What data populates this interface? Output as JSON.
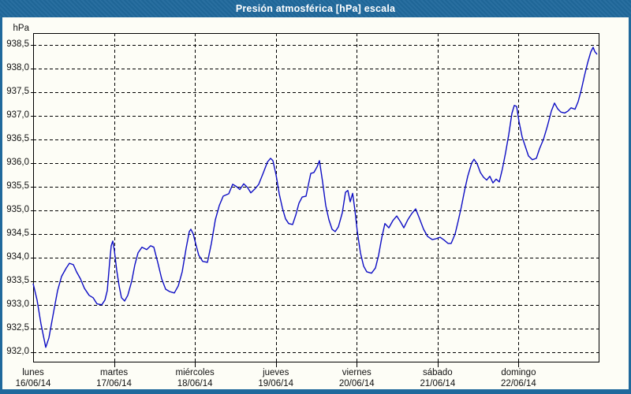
{
  "window": {
    "title": "Presión atmosférica [hPa] escala"
  },
  "colors": {
    "frame_blue": "#20699c",
    "title_text": "#ffffff",
    "background": "#fdfdf6",
    "grid": "#000000",
    "line_blue": "#0d0dc4",
    "label_text": "#111111"
  },
  "chart_data": {
    "type": "line",
    "title": "Presión atmosférica [hPa] escala",
    "legend": "none",
    "grid": "dashed",
    "y_axis": {
      "unit": "hPa",
      "ylim": [
        931.78,
        938.75
      ],
      "ticks": [
        932.0,
        932.5,
        933.0,
        933.5,
        934.0,
        934.5,
        935.0,
        935.5,
        936.0,
        936.5,
        937.0,
        937.5,
        938.0,
        938.5
      ],
      "tick_labels": [
        "932,0",
        "932,5",
        "933,0",
        "933,5",
        "934,0",
        "934,5",
        "935,0",
        "935,5",
        "936,0",
        "936,5",
        "937,0",
        "937,5",
        "938,0",
        "938,5"
      ]
    },
    "x_axis": {
      "range_days": [
        0,
        7
      ],
      "days": [
        {
          "name": "lunes",
          "date": "16/06/14"
        },
        {
          "name": "martes",
          "date": "17/06/14"
        },
        {
          "name": "miércoles",
          "date": "18/06/14"
        },
        {
          "name": "jueves",
          "date": "19/06/14"
        },
        {
          "name": "viernes",
          "date": "20/06/14"
        },
        {
          "name": "sábado",
          "date": "21/06/14"
        },
        {
          "name": "domingo",
          "date": "22/06/14"
        }
      ]
    },
    "series": [
      {
        "name": "Presión atmosférica",
        "color": "#0d0dc4",
        "points_day_hpa": [
          [
            0.0,
            933.45
          ],
          [
            0.049,
            933.1
          ],
          [
            0.097,
            932.6
          ],
          [
            0.156,
            932.1
          ],
          [
            0.195,
            932.3
          ],
          [
            0.253,
            932.85
          ],
          [
            0.302,
            933.3
          ],
          [
            0.351,
            933.6
          ],
          [
            0.409,
            933.78
          ],
          [
            0.448,
            933.88
          ],
          [
            0.497,
            933.85
          ],
          [
            0.536,
            933.7
          ],
          [
            0.585,
            933.55
          ],
          [
            0.634,
            933.35
          ],
          [
            0.692,
            933.2
          ],
          [
            0.741,
            933.15
          ],
          [
            0.79,
            933.02
          ],
          [
            0.848,
            933.0
          ],
          [
            0.887,
            933.1
          ],
          [
            0.916,
            933.3
          ],
          [
            0.946,
            933.9
          ],
          [
            0.965,
            934.25
          ],
          [
            0.985,
            934.35
          ],
          [
            1.004,
            934.15
          ],
          [
            1.033,
            933.73
          ],
          [
            1.063,
            933.4
          ],
          [
            1.092,
            933.15
          ],
          [
            1.131,
            933.08
          ],
          [
            1.17,
            933.2
          ],
          [
            1.219,
            933.5
          ],
          [
            1.258,
            933.85
          ],
          [
            1.297,
            934.1
          ],
          [
            1.345,
            934.22
          ],
          [
            1.404,
            934.17
          ],
          [
            1.453,
            934.25
          ],
          [
            1.492,
            934.22
          ],
          [
            1.54,
            933.9
          ],
          [
            1.589,
            933.55
          ],
          [
            1.638,
            933.33
          ],
          [
            1.687,
            933.28
          ],
          [
            1.745,
            933.25
          ],
          [
            1.794,
            933.4
          ],
          [
            1.843,
            933.7
          ],
          [
            1.891,
            934.2
          ],
          [
            1.93,
            934.55
          ],
          [
            1.95,
            934.6
          ],
          [
            1.979,
            934.5
          ],
          [
            2.008,
            934.3
          ],
          [
            2.047,
            934.05
          ],
          [
            2.096,
            933.92
          ],
          [
            2.155,
            933.9
          ],
          [
            2.203,
            934.3
          ],
          [
            2.252,
            934.8
          ],
          [
            2.301,
            935.1
          ],
          [
            2.35,
            935.3
          ],
          [
            2.418,
            935.35
          ],
          [
            2.467,
            935.55
          ],
          [
            2.515,
            935.5
          ],
          [
            2.554,
            935.44
          ],
          [
            2.603,
            935.56
          ],
          [
            2.652,
            935.48
          ],
          [
            2.691,
            935.37
          ],
          [
            2.74,
            935.45
          ],
          [
            2.788,
            935.55
          ],
          [
            2.847,
            935.8
          ],
          [
            2.896,
            936.02
          ],
          [
            2.935,
            936.1
          ],
          [
            2.964,
            936.05
          ],
          [
            3.003,
            935.75
          ],
          [
            3.042,
            935.35
          ],
          [
            3.081,
            935.05
          ],
          [
            3.12,
            934.82
          ],
          [
            3.159,
            934.72
          ],
          [
            3.208,
            934.7
          ],
          [
            3.247,
            934.9
          ],
          [
            3.286,
            935.15
          ],
          [
            3.325,
            935.28
          ],
          [
            3.373,
            935.3
          ],
          [
            3.403,
            935.55
          ],
          [
            3.432,
            935.78
          ],
          [
            3.471,
            935.8
          ],
          [
            3.51,
            935.92
          ],
          [
            3.539,
            936.05
          ],
          [
            3.578,
            935.6
          ],
          [
            3.617,
            935.1
          ],
          [
            3.656,
            934.8
          ],
          [
            3.695,
            934.6
          ],
          [
            3.734,
            934.55
          ],
          [
            3.773,
            934.65
          ],
          [
            3.822,
            934.95
          ],
          [
            3.861,
            935.38
          ],
          [
            3.89,
            935.42
          ],
          [
            3.919,
            935.18
          ],
          [
            3.949,
            935.36
          ],
          [
            3.978,
            935.0
          ],
          [
            4.007,
            934.55
          ],
          [
            4.046,
            934.1
          ],
          [
            4.085,
            933.82
          ],
          [
            4.124,
            933.7
          ],
          [
            4.182,
            933.67
          ],
          [
            4.231,
            933.78
          ],
          [
            4.27,
            934.05
          ],
          [
            4.309,
            934.42
          ],
          [
            4.348,
            934.72
          ],
          [
            4.397,
            934.63
          ],
          [
            4.446,
            934.78
          ],
          [
            4.494,
            934.88
          ],
          [
            4.543,
            934.75
          ],
          [
            4.582,
            934.63
          ],
          [
            4.631,
            934.8
          ],
          [
            4.68,
            934.93
          ],
          [
            4.728,
            935.03
          ],
          [
            4.777,
            934.82
          ],
          [
            4.826,
            934.6
          ],
          [
            4.875,
            934.45
          ],
          [
            4.933,
            934.38
          ],
          [
            4.982,
            934.4
          ],
          [
            5.031,
            934.43
          ],
          [
            5.08,
            934.37
          ],
          [
            5.128,
            934.3
          ],
          [
            5.167,
            934.3
          ],
          [
            5.216,
            934.5
          ],
          [
            5.255,
            934.78
          ],
          [
            5.294,
            935.08
          ],
          [
            5.333,
            935.42
          ],
          [
            5.372,
            935.72
          ],
          [
            5.421,
            936.0
          ],
          [
            5.45,
            936.08
          ],
          [
            5.489,
            935.98
          ],
          [
            5.528,
            935.8
          ],
          [
            5.567,
            935.7
          ],
          [
            5.606,
            935.64
          ],
          [
            5.645,
            935.72
          ],
          [
            5.684,
            935.58
          ],
          [
            5.723,
            935.66
          ],
          [
            5.762,
            935.6
          ],
          [
            5.801,
            935.88
          ],
          [
            5.84,
            936.22
          ],
          [
            5.879,
            936.6
          ],
          [
            5.918,
            937.05
          ],
          [
            5.947,
            937.22
          ],
          [
            5.976,
            937.2
          ],
          [
            6.006,
            936.88
          ],
          [
            6.045,
            936.55
          ],
          [
            6.084,
            936.35
          ],
          [
            6.123,
            936.15
          ],
          [
            6.171,
            936.07
          ],
          [
            6.22,
            936.1
          ],
          [
            6.259,
            936.3
          ],
          [
            6.308,
            936.5
          ],
          [
            6.357,
            936.78
          ],
          [
            6.405,
            937.1
          ],
          [
            6.444,
            937.27
          ],
          [
            6.483,
            937.15
          ],
          [
            6.522,
            937.08
          ],
          [
            6.571,
            937.06
          ],
          [
            6.61,
            937.1
          ],
          [
            6.649,
            937.17
          ],
          [
            6.698,
            937.14
          ],
          [
            6.737,
            937.3
          ],
          [
            6.776,
            937.55
          ],
          [
            6.815,
            937.85
          ],
          [
            6.854,
            938.12
          ],
          [
            6.893,
            938.35
          ],
          [
            6.922,
            938.45
          ],
          [
            6.942,
            938.36
          ],
          [
            6.971,
            938.3
          ]
        ]
      }
    ]
  }
}
